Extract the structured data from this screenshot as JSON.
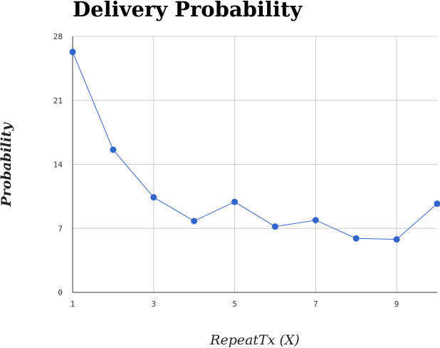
{
  "chart_data": {
    "type": "line",
    "title": "Delivery Probability",
    "xlabel": "RepeatTx (X)",
    "ylabel": "Probability",
    "x": [
      1,
      2,
      3,
      4,
      5,
      6,
      7,
      8,
      9,
      10
    ],
    "series": [
      {
        "values": [
          26.3,
          15.6,
          10.4,
          7.8,
          9.9,
          7.2,
          7.9,
          5.9,
          5.8,
          9.7
        ]
      }
    ],
    "xlim": [
      1,
      10
    ],
    "ylim": [
      0,
      28
    ],
    "xticks": [
      "1",
      "3",
      "5",
      "7",
      "9"
    ],
    "yticks": [
      "0",
      "7",
      "14",
      "21",
      "28"
    ],
    "grid": true,
    "legend": "none",
    "colors": {
      "line": "#3366cc",
      "grid": "#cccccc"
    }
  }
}
